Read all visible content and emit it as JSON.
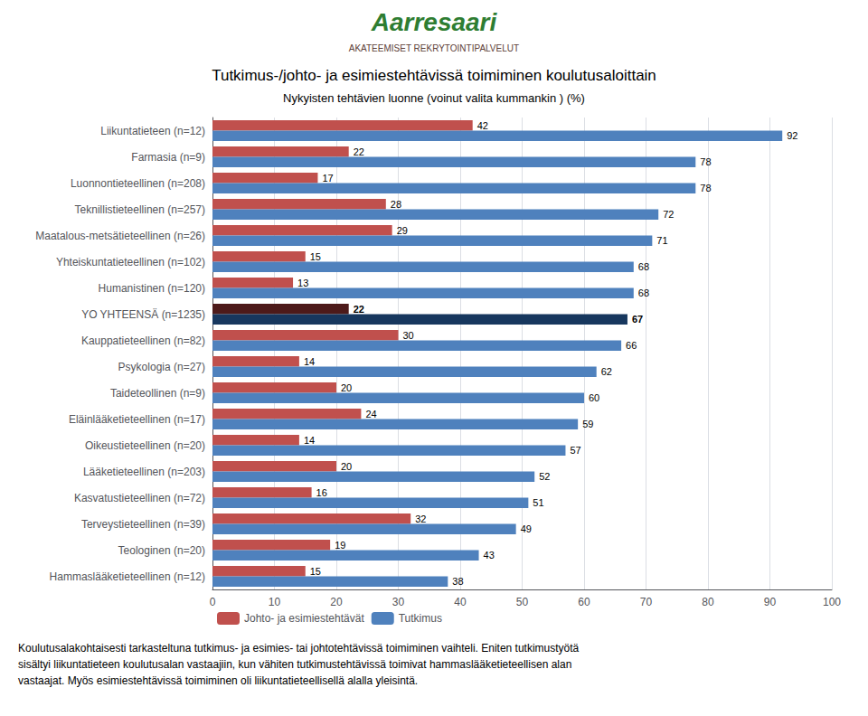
{
  "chart_data": {
    "type": "bar",
    "orientation": "horizontal",
    "title": "Tutkimus-/johto- ja esimiestehtävissä toimiminen koulutusaloittain",
    "subtitle": "Nykyisten tehtävien luonne (voinut valita kummankin ) (%)",
    "annotations": [
      {
        "text": "Aarresaari",
        "color": "#2E7D32"
      },
      {
        "text": "AKATEEMISET REKRYTOINTIPALVELUT",
        "color": "#5D4037"
      },
      {
        "text": "Koulutusalakohtaisesti tarkasteltuna tutkimus- ja esimies- tai johtotehtävissä toimiminen vaihteli. Eniten tutkimustyötä\nsisältyi liikuntatieteen koulutusalan vastaajiin, kun vähiten tutkimustehtävissä toimivat hammaslääketieteellisen alan\nvastaajat. Myös esimiestehtävissä toimiminen oli liikuntatieteellisellä alalla yleisintä."
      }
    ],
    "categories": [
      "Liikuntatieteen (n=12)",
      "Farmasia (n=9)",
      "Luonnontieteellinen (n=208)",
      "Teknillistieteellinen (n=257)",
      "Maatalous-metsätieteellinen (n=26)",
      "Yhteiskuntatieteellinen (n=102)",
      "Humanistinen (n=120)",
      "YO YHTEENSÄ (n=1235)",
      "Kauppatieteellinen (n=82)",
      "Psykologia (n=27)",
      "Taideteollinen (n=9)",
      "Eläinlääketieteellinen (n=17)",
      "Oikeustieteellinen (n=20)",
      "Lääketieteellinen (n=203)",
      "Kasvatustieteellinen (n=72)",
      "Terveystieteellinen (n=39)",
      "Teologinen (n=20)",
      "Hammaslääketieteellinen (n=12)"
    ],
    "series": [
      {
        "name": "Johto- ja esimiestehtävät",
        "color": "#C0504D",
        "colors": [
          "#C0504D",
          "#C0504D",
          "#C0504D",
          "#C0504D",
          "#C0504D",
          "#C0504D",
          "#C0504D",
          "#4D1A1A",
          "#C0504D",
          "#C0504D",
          "#C0504D",
          "#C0504D",
          "#C0504D",
          "#C0504D",
          "#C0504D",
          "#C0504D",
          "#C0504D",
          "#C0504D"
        ],
        "values": [
          42,
          22,
          17,
          28,
          29,
          15,
          13,
          22,
          30,
          14,
          20,
          24,
          14,
          20,
          16,
          32,
          19,
          15
        ]
      },
      {
        "name": "Tutkimus",
        "color": "#4F81BD",
        "colors": [
          "#4F81BD",
          "#4F81BD",
          "#4F81BD",
          "#4F81BD",
          "#4F81BD",
          "#4F81BD",
          "#4F81BD",
          "#17375E",
          "#4F81BD",
          "#4F81BD",
          "#4F81BD",
          "#4F81BD",
          "#4F81BD",
          "#4F81BD",
          "#4F81BD",
          "#4F81BD",
          "#4F81BD",
          "#4F81BD"
        ],
        "values": [
          92,
          78,
          78,
          72,
          71,
          68,
          68,
          67,
          66,
          62,
          60,
          59,
          57,
          52,
          51,
          49,
          43,
          38
        ]
      }
    ],
    "xlim": [
      0,
      100
    ],
    "xticks": [
      0,
      10,
      20,
      30,
      40,
      50,
      60,
      70,
      80,
      90,
      100
    ],
    "grid": true,
    "legend": "bottom",
    "data_labels": true
  }
}
